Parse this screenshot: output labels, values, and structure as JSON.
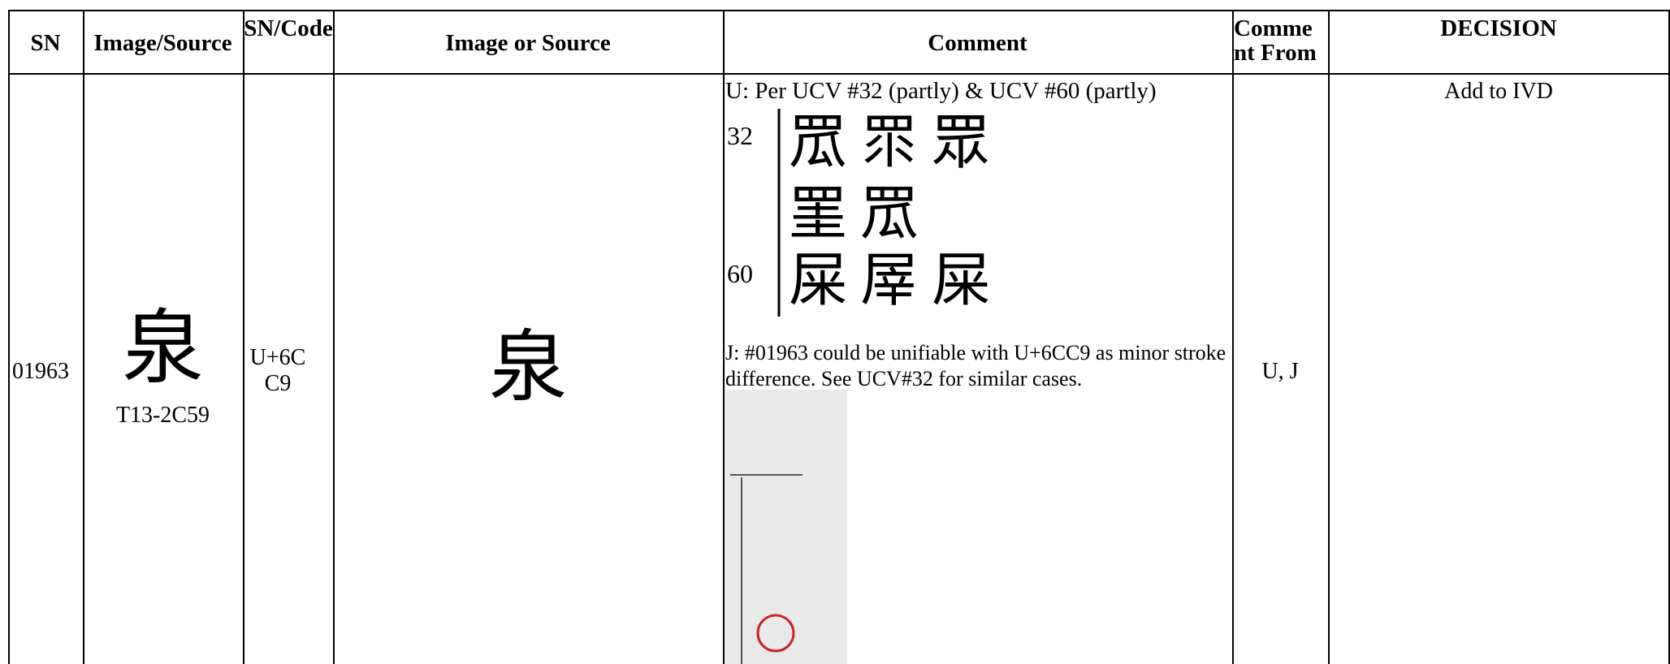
{
  "table": {
    "headers": [
      "SN",
      "Image/Source",
      "SN/Code",
      "Image or Source",
      "Comment",
      "Comment From",
      "DECISION"
    ],
    "row": {
      "sn": "01963",
      "image_glyph": "泉",
      "image_source": "T13-2C59",
      "code": "U+6CC9",
      "image_or_source": "泉",
      "comment_u": "U: Per UCV #32 (partly) & UCV #60 (partly)",
      "ucv_figure": [
        {
          "label": "32",
          "glyphs": [
            "罛",
            "眔",
            "眾"
          ]
        },
        {
          "glyphs": [
            "罣",
            "罛"
          ]
        },
        {
          "label": "60",
          "glyphs": [
            "屎",
            "屖",
            "屎"
          ]
        }
      ],
      "comment_j": "J: #01963 could be unifiable with U+6CC9 as minor stroke difference. See UCV#32 for similar cases.",
      "comment_from": "U, J",
      "decision": "Add to IVD"
    }
  }
}
